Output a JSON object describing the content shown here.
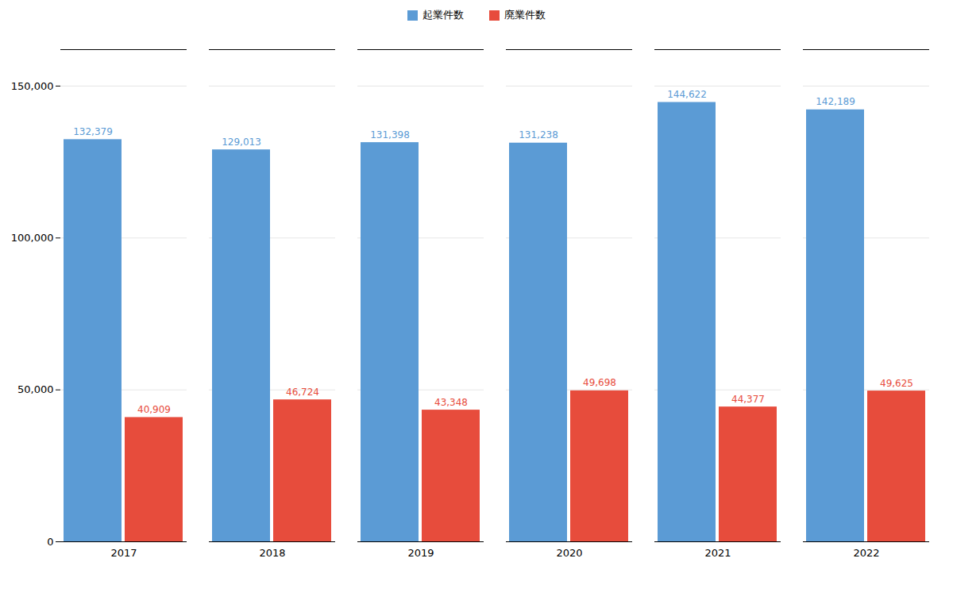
{
  "chart_data": {
    "type": "bar",
    "categories": [
      "2017",
      "2018",
      "2019",
      "2020",
      "2021",
      "2022"
    ],
    "series": [
      {
        "name": "起業件数",
        "color": "#5B9BD5",
        "values": [
          132379,
          129013,
          131398,
          131238,
          144622,
          142189
        ],
        "value_labels": [
          "132,379",
          "129,013",
          "131,398",
          "131,238",
          "144,622",
          "142,189"
        ]
      },
      {
        "name": "廃業件数",
        "color": "#E74C3C",
        "values": [
          40909,
          46724,
          43348,
          49698,
          44377,
          49625
        ],
        "value_labels": [
          "40,909",
          "46,724",
          "43,348",
          "49,698",
          "44,377",
          "49,625"
        ]
      }
    ],
    "ylim": [
      0,
      162000
    ],
    "yticks": [
      0,
      {
        "value": 50000,
        "label": "50,000"
      },
      {
        "value": 100000,
        "label": "100,000"
      },
      {
        "value": 150000,
        "label": "150,000"
      }
    ],
    "grid": true,
    "legend": "top",
    "data_labels": true
  }
}
